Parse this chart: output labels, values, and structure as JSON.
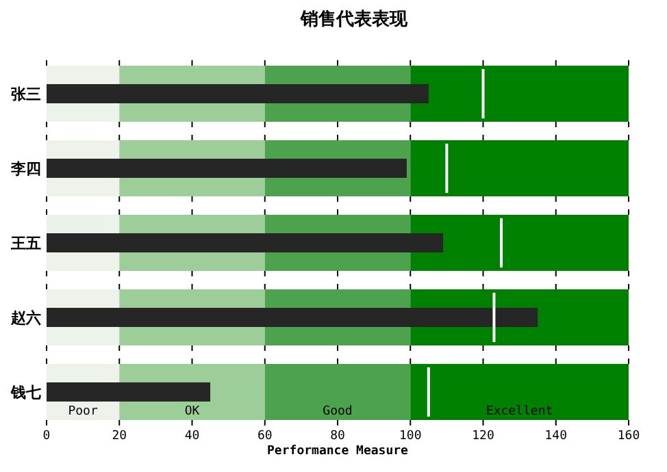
{
  "chart_data": [
    {
      "type": "bar",
      "orientation": "horizontal",
      "title": "销售代表表现",
      "categories": [
        "张三"
      ],
      "values": [
        105
      ],
      "color": "#262626",
      "xlim": [
        0,
        160
      ],
      "xticks": [
        0,
        20,
        40,
        60,
        80,
        100,
        120,
        140,
        160
      ],
      "tick_labels": "y",
      "bands": [
        {
          "axis": "x",
          "from": 0,
          "to": 20,
          "color": "#edf3ea"
        },
        {
          "axis": "x",
          "from": 20,
          "to": 60,
          "color": "#9dcd98"
        },
        {
          "axis": "x",
          "from": 60,
          "to": 100,
          "color": "#4da24e"
        },
        {
          "axis": "x",
          "from": 100,
          "to": 160,
          "color": "#008000"
        }
      ],
      "ref_lines": [
        {
          "axis": "x",
          "value": 120,
          "color": "#ffffff"
        }
      ]
    },
    {
      "type": "bar",
      "orientation": "horizontal",
      "categories": [
        "李四"
      ],
      "values": [
        99
      ],
      "color": "#262626",
      "xlim": [
        0,
        160
      ],
      "xticks": [
        0,
        20,
        40,
        60,
        80,
        100,
        120,
        140,
        160
      ],
      "tick_labels": "y",
      "bands": [
        {
          "axis": "x",
          "from": 0,
          "to": 20,
          "color": "#edf3ea"
        },
        {
          "axis": "x",
          "from": 20,
          "to": 60,
          "color": "#9dcd98"
        },
        {
          "axis": "x",
          "from": 60,
          "to": 100,
          "color": "#4da24e"
        },
        {
          "axis": "x",
          "from": 100,
          "to": 160,
          "color": "#008000"
        }
      ],
      "ref_lines": [
        {
          "axis": "x",
          "value": 110,
          "color": "#ffffff"
        }
      ]
    },
    {
      "type": "bar",
      "orientation": "horizontal",
      "categories": [
        "王五"
      ],
      "values": [
        109
      ],
      "color": "#262626",
      "xlim": [
        0,
        160
      ],
      "xticks": [
        0,
        20,
        40,
        60,
        80,
        100,
        120,
        140,
        160
      ],
      "tick_labels": "y",
      "bands": [
        {
          "axis": "x",
          "from": 0,
          "to": 20,
          "color": "#edf3ea"
        },
        {
          "axis": "x",
          "from": 20,
          "to": 60,
          "color": "#9dcd98"
        },
        {
          "axis": "x",
          "from": 60,
          "to": 100,
          "color": "#4da24e"
        },
        {
          "axis": "x",
          "from": 100,
          "to": 160,
          "color": "#008000"
        }
      ],
      "ref_lines": [
        {
          "axis": "x",
          "value": 125,
          "color": "#ffffff"
        }
      ]
    },
    {
      "type": "bar",
      "orientation": "horizontal",
      "categories": [
        "赵六"
      ],
      "values": [
        135
      ],
      "color": "#262626",
      "xlim": [
        0,
        160
      ],
      "xticks": [
        0,
        20,
        40,
        60,
        80,
        100,
        120,
        140,
        160
      ],
      "tick_labels": "y",
      "bands": [
        {
          "axis": "x",
          "from": 0,
          "to": 20,
          "color": "#edf3ea"
        },
        {
          "axis": "x",
          "from": 20,
          "to": 60,
          "color": "#9dcd98"
        },
        {
          "axis": "x",
          "from": 60,
          "to": 100,
          "color": "#4da24e"
        },
        {
          "axis": "x",
          "from": 100,
          "to": 160,
          "color": "#008000"
        }
      ],
      "ref_lines": [
        {
          "axis": "x",
          "value": 123,
          "color": "#ffffff"
        }
      ]
    },
    {
      "type": "bar",
      "orientation": "horizontal",
      "categories": [
        "钱七"
      ],
      "values": [
        45
      ],
      "color": "#262626",
      "xlim": [
        0,
        160
      ],
      "xticks": [
        0,
        20,
        40,
        60,
        80,
        100,
        120,
        140,
        160
      ],
      "xlabel": "Performance Measure",
      "bands": [
        {
          "axis": "x",
          "from": 0,
          "to": 20,
          "color": "#edf3ea",
          "label": "Poor"
        },
        {
          "axis": "x",
          "from": 20,
          "to": 60,
          "color": "#9dcd98",
          "label": "OK"
        },
        {
          "axis": "x",
          "from": 60,
          "to": 100,
          "color": "#4da24e",
          "label": "Good"
        },
        {
          "axis": "x",
          "from": 100,
          "to": 160,
          "color": "#008000",
          "label": "Excellent"
        }
      ],
      "ref_lines": [
        {
          "axis": "x",
          "value": 105,
          "color": "#ffffff"
        }
      ]
    }
  ]
}
